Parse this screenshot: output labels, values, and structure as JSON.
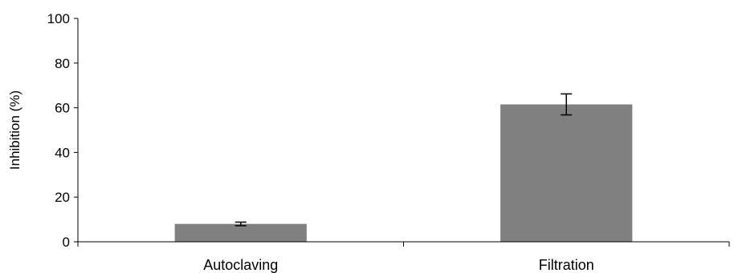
{
  "chart_data": {
    "type": "bar",
    "title": "",
    "xlabel": "",
    "ylabel": "Inhibition (%)",
    "categories": [
      "Autoclaving",
      "Filtration"
    ],
    "series": [
      {
        "values": [
          8,
          61.5
        ],
        "errors": [
          0.8,
          4.7
        ]
      }
    ],
    "ylim": [
      0,
      100
    ],
    "yticks": [
      0,
      20,
      40,
      60,
      80,
      100
    ],
    "grid": false,
    "bar_color": "#808080",
    "axis_color": "#000000"
  }
}
